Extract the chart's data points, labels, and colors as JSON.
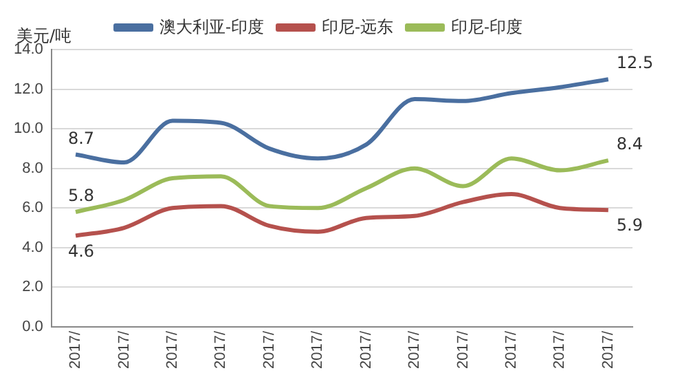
{
  "chart_data": {
    "type": "line",
    "ylabel": "美元/吨",
    "categories": [
      "2017/",
      "2017/",
      "2017/",
      "2017/",
      "2017/",
      "2017/",
      "2017/",
      "2017/",
      "2017/",
      "2017/",
      "2017/",
      "2017/"
    ],
    "series": [
      {
        "name": "澳大利亚-印度",
        "color": "#4a6fa0",
        "values": [
          8.7,
          8.3,
          10.4,
          10.3,
          9.0,
          8.5,
          9.2,
          11.5,
          11.4,
          11.8,
          12.1,
          12.5
        ],
        "value_labels": [
          "8.7",
          null,
          null,
          null,
          null,
          null,
          null,
          null,
          null,
          null,
          null,
          "12.5"
        ]
      },
      {
        "name": "印尼-远东",
        "color": "#b5514d",
        "values": [
          4.6,
          5.0,
          6.0,
          6.1,
          5.1,
          4.8,
          5.5,
          5.6,
          6.3,
          6.7,
          6.0,
          5.9
        ],
        "value_labels": [
          "4.6",
          null,
          null,
          null,
          null,
          null,
          null,
          null,
          null,
          null,
          null,
          "5.9"
        ]
      },
      {
        "name": "印尼-印度",
        "color": "#9bbb59",
        "values": [
          5.8,
          6.4,
          7.5,
          7.6,
          6.1,
          6.0,
          7.0,
          8.0,
          7.1,
          8.5,
          7.9,
          8.4
        ],
        "value_labels": [
          "5.8",
          null,
          null,
          null,
          null,
          null,
          null,
          null,
          null,
          null,
          null,
          "8.4"
        ]
      }
    ],
    "ylim": [
      0,
      14
    ],
    "yticks": [
      {
        "value": 0,
        "label": "0.0"
      },
      {
        "value": 2,
        "label": "2.0"
      },
      {
        "value": 4,
        "label": "4.0"
      },
      {
        "value": 6,
        "label": "6.0"
      },
      {
        "value": 8,
        "label": "8.0"
      },
      {
        "value": 10,
        "label": "10.0"
      },
      {
        "value": 12,
        "label": "12.0"
      },
      {
        "value": 14,
        "label": "14.0"
      }
    ],
    "grid": "y",
    "legend": "top",
    "marker": "none",
    "line_style": "solid"
  }
}
